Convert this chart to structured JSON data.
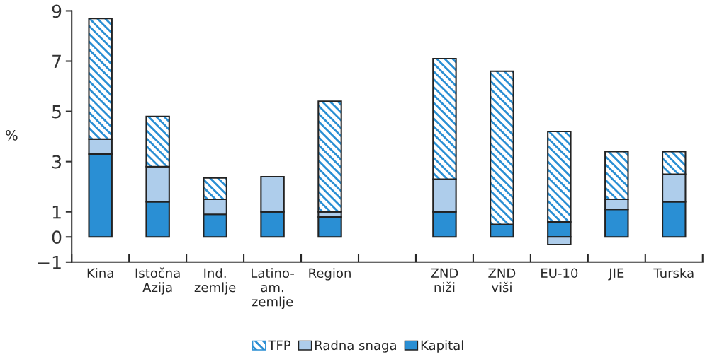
{
  "chart_data": {
    "type": "bar",
    "stacked": true,
    "ylabel": "%",
    "categories": [
      "Kina",
      "Istočna\nAzija",
      "Ind.\nzemlje",
      "Latino-\nam.\nzemlje",
      "Region",
      null,
      "ZND\nniži",
      "ZND\nviši",
      "EU-10",
      "JIE",
      "Turska"
    ],
    "series": [
      {
        "name": "Kapital",
        "color": "#2a8fd4",
        "values": [
          3.3,
          1.4,
          0.9,
          1.0,
          0.8,
          null,
          1.0,
          0.5,
          0.6,
          1.1,
          1.4
        ]
      },
      {
        "name": "Radna snaga",
        "color": "#aecdeb",
        "values": [
          0.6,
          1.4,
          0.6,
          1.4,
          0.2,
          null,
          1.3,
          0,
          -0.3,
          0.4,
          1.1
        ]
      },
      {
        "name": "TFP",
        "color": "#2a8fd4",
        "values": [
          4.8,
          2.0,
          0.85,
          0,
          4.4,
          null,
          4.8,
          6.1,
          3.6,
          1.9,
          0.9
        ]
      }
    ],
    "ylim": [
      -1,
      9
    ],
    "yticks": [
      {
        "value": -1,
        "label": "−1"
      },
      0,
      1,
      3,
      5,
      7,
      9
    ],
    "grid": false,
    "legend": "bottom"
  }
}
